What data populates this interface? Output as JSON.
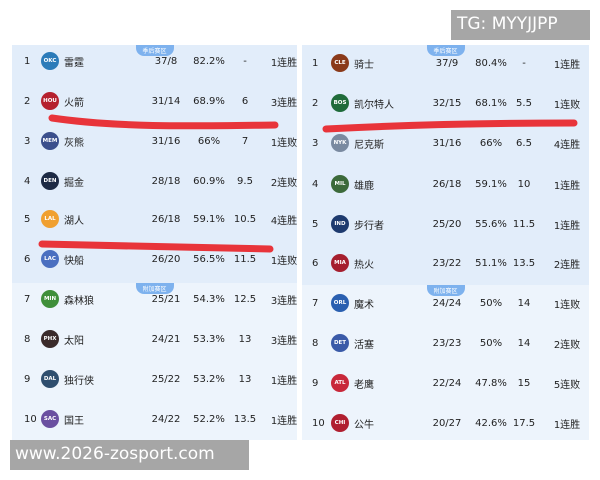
{
  "watermarks": {
    "tg": "TG: MYYJJPP",
    "site": "www.2026-zosport.com"
  },
  "badges": {
    "playoff": "季后赛区",
    "playin": "附加赛区"
  },
  "west": [
    {
      "rank": "1",
      "abbr": "OKC",
      "color": "#2b7bb9",
      "team": "雷霆",
      "record": "37/8",
      "pct": "82.2%",
      "gb": "-",
      "streak": "1连胜"
    },
    {
      "rank": "2",
      "abbr": "HOU",
      "color": "#b5202e",
      "team": "火箭",
      "record": "31/14",
      "pct": "68.9%",
      "gb": "6",
      "streak": "3连胜"
    },
    {
      "rank": "3",
      "abbr": "MEM",
      "color": "#3b4f8c",
      "team": "灰熊",
      "record": "31/16",
      "pct": "66%",
      "gb": "7",
      "streak": "1连败"
    },
    {
      "rank": "4",
      "abbr": "DEN",
      "color": "#1d2a44",
      "team": "掘金",
      "record": "28/18",
      "pct": "60.9%",
      "gb": "9.5",
      "streak": "2连败"
    },
    {
      "rank": "5",
      "abbr": "LAL",
      "color": "#f0a030",
      "team": "湖人",
      "record": "26/18",
      "pct": "59.1%",
      "gb": "10.5",
      "streak": "4连胜"
    },
    {
      "rank": "6",
      "abbr": "LAC",
      "color": "#4a6fc0",
      "team": "快船",
      "record": "26/20",
      "pct": "56.5%",
      "gb": "11.5",
      "streak": "1连败"
    },
    {
      "rank": "7",
      "abbr": "MIN",
      "color": "#3f8f3a",
      "team": "森林狼",
      "record": "25/21",
      "pct": "54.3%",
      "gb": "12.5",
      "streak": "3连胜"
    },
    {
      "rank": "8",
      "abbr": "PHX",
      "color": "#3a2a2a",
      "team": "太阳",
      "record": "24/21",
      "pct": "53.3%",
      "gb": "13",
      "streak": "3连胜"
    },
    {
      "rank": "9",
      "abbr": "DAL",
      "color": "#2e4e6e",
      "team": "独行侠",
      "record": "25/22",
      "pct": "53.2%",
      "gb": "13",
      "streak": "1连胜"
    },
    {
      "rank": "10",
      "abbr": "SAC",
      "color": "#6a4fa0",
      "team": "国王",
      "record": "24/22",
      "pct": "52.2%",
      "gb": "13.5",
      "streak": "1连胜"
    }
  ],
  "east": [
    {
      "rank": "1",
      "abbr": "CLE",
      "color": "#8a3a1a",
      "team": "骑士",
      "record": "37/9",
      "pct": "80.4%",
      "gb": "-",
      "streak": "1连胜"
    },
    {
      "rank": "2",
      "abbr": "BOS",
      "color": "#1f6b3a",
      "team": "凯尔特人",
      "record": "32/15",
      "pct": "68.1%",
      "gb": "5.5",
      "streak": "1连败"
    },
    {
      "rank": "3",
      "abbr": "NYK",
      "color": "#7a8aa0",
      "team": "尼克斯",
      "record": "31/16",
      "pct": "66%",
      "gb": "6.5",
      "streak": "4连胜"
    },
    {
      "rank": "4",
      "abbr": "MIL",
      "color": "#3c6a3a",
      "team": "雄鹿",
      "record": "26/18",
      "pct": "59.1%",
      "gb": "10",
      "streak": "1连胜"
    },
    {
      "rank": "5",
      "abbr": "IND",
      "color": "#1d3a6e",
      "team": "步行者",
      "record": "25/20",
      "pct": "55.6%",
      "gb": "11.5",
      "streak": "1连胜"
    },
    {
      "rank": "6",
      "abbr": "MIA",
      "color": "#a51e2e",
      "team": "热火",
      "record": "23/22",
      "pct": "51.1%",
      "gb": "13.5",
      "streak": "2连胜"
    },
    {
      "rank": "7",
      "abbr": "ORL",
      "color": "#2a5fb0",
      "team": "魔术",
      "record": "24/24",
      "pct": "50%",
      "gb": "14",
      "streak": "1连败"
    },
    {
      "rank": "8",
      "abbr": "DET",
      "color": "#3a5aa8",
      "team": "活塞",
      "record": "23/23",
      "pct": "50%",
      "gb": "14",
      "streak": "2连败"
    },
    {
      "rank": "9",
      "abbr": "ATL",
      "color": "#c8283a",
      "team": "老鹰",
      "record": "22/24",
      "pct": "47.8%",
      "gb": "15",
      "streak": "5连败"
    },
    {
      "rank": "10",
      "abbr": "CHI",
      "color": "#b01f30",
      "team": "公牛",
      "record": "20/27",
      "pct": "42.6%",
      "gb": "17.5",
      "streak": "1连胜"
    }
  ],
  "annotation_color": "#e8343a"
}
